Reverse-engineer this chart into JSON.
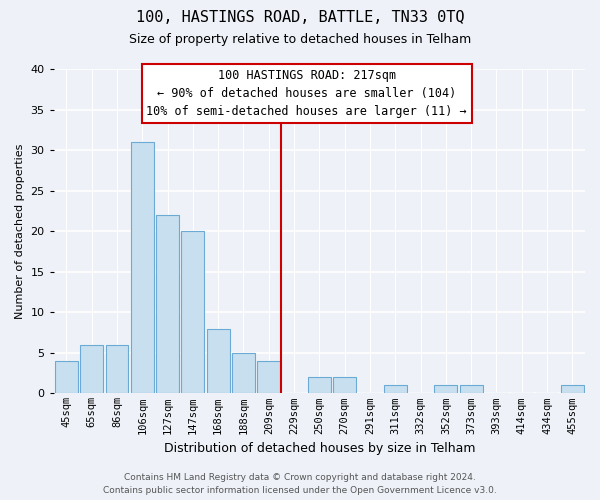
{
  "title": "100, HASTINGS ROAD, BATTLE, TN33 0TQ",
  "subtitle": "Size of property relative to detached houses in Telham",
  "xlabel": "Distribution of detached houses by size in Telham",
  "ylabel": "Number of detached properties",
  "bar_labels": [
    "45sqm",
    "65sqm",
    "86sqm",
    "106sqm",
    "127sqm",
    "147sqm",
    "168sqm",
    "188sqm",
    "209sqm",
    "229sqm",
    "250sqm",
    "270sqm",
    "291sqm",
    "311sqm",
    "332sqm",
    "352sqm",
    "373sqm",
    "393sqm",
    "414sqm",
    "434sqm",
    "455sqm"
  ],
  "bar_values": [
    4,
    6,
    6,
    31,
    22,
    20,
    8,
    5,
    4,
    0,
    2,
    2,
    0,
    1,
    0,
    1,
    1,
    0,
    0,
    0,
    1
  ],
  "bar_color": "#c8dff0",
  "bar_edge_color": "#6aaad4",
  "vline_x": 8.5,
  "vline_color": "#cc0000",
  "annotation_title": "100 HASTINGS ROAD: 217sqm",
  "annotation_line1": "← 90% of detached houses are smaller (104)",
  "annotation_line2": "10% of semi-detached houses are larger (11) →",
  "annotation_box_facecolor": "white",
  "annotation_box_edgecolor": "#cc0000",
  "footer_line1": "Contains HM Land Registry data © Crown copyright and database right 2024.",
  "footer_line2": "Contains public sector information licensed under the Open Government Licence v3.0.",
  "ylim": [
    0,
    40
  ],
  "yticks": [
    0,
    5,
    10,
    15,
    20,
    25,
    30,
    35,
    40
  ],
  "bg_color": "#eef2f8",
  "grid_color": "white",
  "title_fontsize": 11,
  "subtitle_fontsize": 9,
  "xlabel_fontsize": 9,
  "ylabel_fontsize": 8,
  "tick_fontsize": 8,
  "xtick_fontsize": 7.5,
  "annotation_fontsize": 8.5,
  "footer_fontsize": 6.5
}
